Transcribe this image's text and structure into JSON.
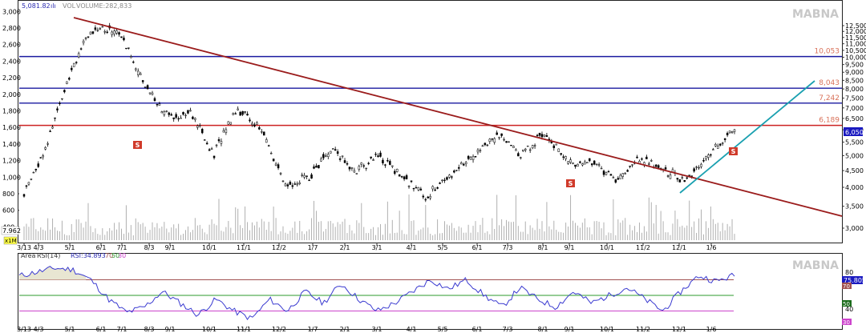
{
  "chart_data": [
    {
      "type": "candlestick",
      "watermark": "MABNA",
      "header": {
        "price_value": "5,081.82",
        "price_marker": "ılı",
        "volume_label": "VOL",
        "volume_text": "VOLUME:282,833"
      },
      "left_axis": {
        "ticks": [
          400,
          600,
          800,
          1000,
          1200,
          1400,
          1600,
          1800,
          2000,
          2200,
          2400,
          2600,
          2800,
          3000
        ],
        "tick_labels": [
          "400",
          "600",
          "800",
          "1,000",
          "1,200",
          "1,400",
          "1,600",
          "1,800",
          "2,000",
          "2,200",
          "2,400",
          "2,600",
          "2,800",
          "3,000"
        ],
        "ylim": [
          240,
          3080
        ],
        "scale": "linear"
      },
      "right_axis": {
        "ticks": [
          3000,
          3500,
          4000,
          4500,
          5000,
          5500,
          6000,
          6500,
          7000,
          7500,
          8000,
          8500,
          9000,
          9500,
          10000,
          10500,
          11000,
          11500,
          12000,
          12500
        ],
        "tick_labels": [
          "3,000",
          "3,500",
          "4,000",
          "4,500",
          "5,000",
          "5,500",
          "6,000",
          "6,500",
          "7,000",
          "7,500",
          "8,000",
          "8,500",
          "9,000",
          "9,500",
          "10,000",
          "10,500",
          "11,000",
          "11,500",
          "12,000",
          "12,500"
        ],
        "scale": "log"
      },
      "current_price_label": "6,050",
      "volume_axis_label": "7.962",
      "volume_unit_label": "x1M",
      "x_ticks": [
        "3/13",
        "4/3",
        "5/1",
        "6/1",
        "7/1",
        "8/3",
        "9/1",
        "10/1",
        "11/1",
        "12/2",
        "1/7",
        "2/1",
        "3/1",
        "4/1",
        "5/5",
        "6/1",
        "7/3",
        "8/1",
        "9/1",
        "10/1",
        "11/2",
        "12/1",
        "1/6"
      ],
      "levels": [
        {
          "value": 10053,
          "label": "10,053",
          "color": "#1a1aa0"
        },
        {
          "value": 8043,
          "label": "8,043",
          "color": "#1a1aa0"
        },
        {
          "value": 7242,
          "label": "7,242",
          "color": "#1a1aa0"
        },
        {
          "value": 6189,
          "label": "6,189",
          "color": "#cc2222"
        }
      ],
      "sell_signals": [
        "S",
        "S",
        "S"
      ],
      "close_series": [
        3800,
        5400,
        9200,
        12400,
        11900,
        8500,
        6600,
        6800,
        5000,
        7000,
        6000,
        4000,
        4300,
        5200,
        4500,
        5000,
        4300,
        3700,
        4400,
        5000,
        5800,
        5000,
        5900,
        4700,
        4800,
        4200,
        4900,
        4500,
        4200,
        5100,
        6000
      ],
      "trendlines": [
        {
          "name": "resistance",
          "color": "#9b1c1c"
        },
        {
          "name": "support",
          "color": "#1aa0b0"
        }
      ]
    },
    {
      "type": "line",
      "indicator": "Area RSI(14)",
      "header_label": "Area",
      "header_text": "RSI(14)",
      "header_value": "RSI:34.893",
      "levels_text": [
        "70",
        "50",
        "30"
      ],
      "ylim": [
        10,
        90
      ],
      "levels": [
        70,
        50,
        30
      ],
      "level_colors": [
        "#a05050",
        "#2e9b2e",
        "#cc44cc"
      ],
      "current_value_label": "75.805",
      "tick_labels": [
        "80",
        "70",
        "50",
        "40",
        "30"
      ],
      "watermark": "MABNA",
      "series": [
        75,
        80,
        85,
        83,
        70,
        45,
        28,
        35,
        55,
        40,
        25,
        45,
        30,
        20,
        45,
        30,
        55,
        40,
        65,
        45,
        30,
        40,
        55,
        70,
        58,
        70,
        50,
        35,
        60,
        45,
        35,
        55,
        40,
        50,
        60,
        45,
        30,
        55,
        75,
        68,
        76
      ]
    }
  ]
}
